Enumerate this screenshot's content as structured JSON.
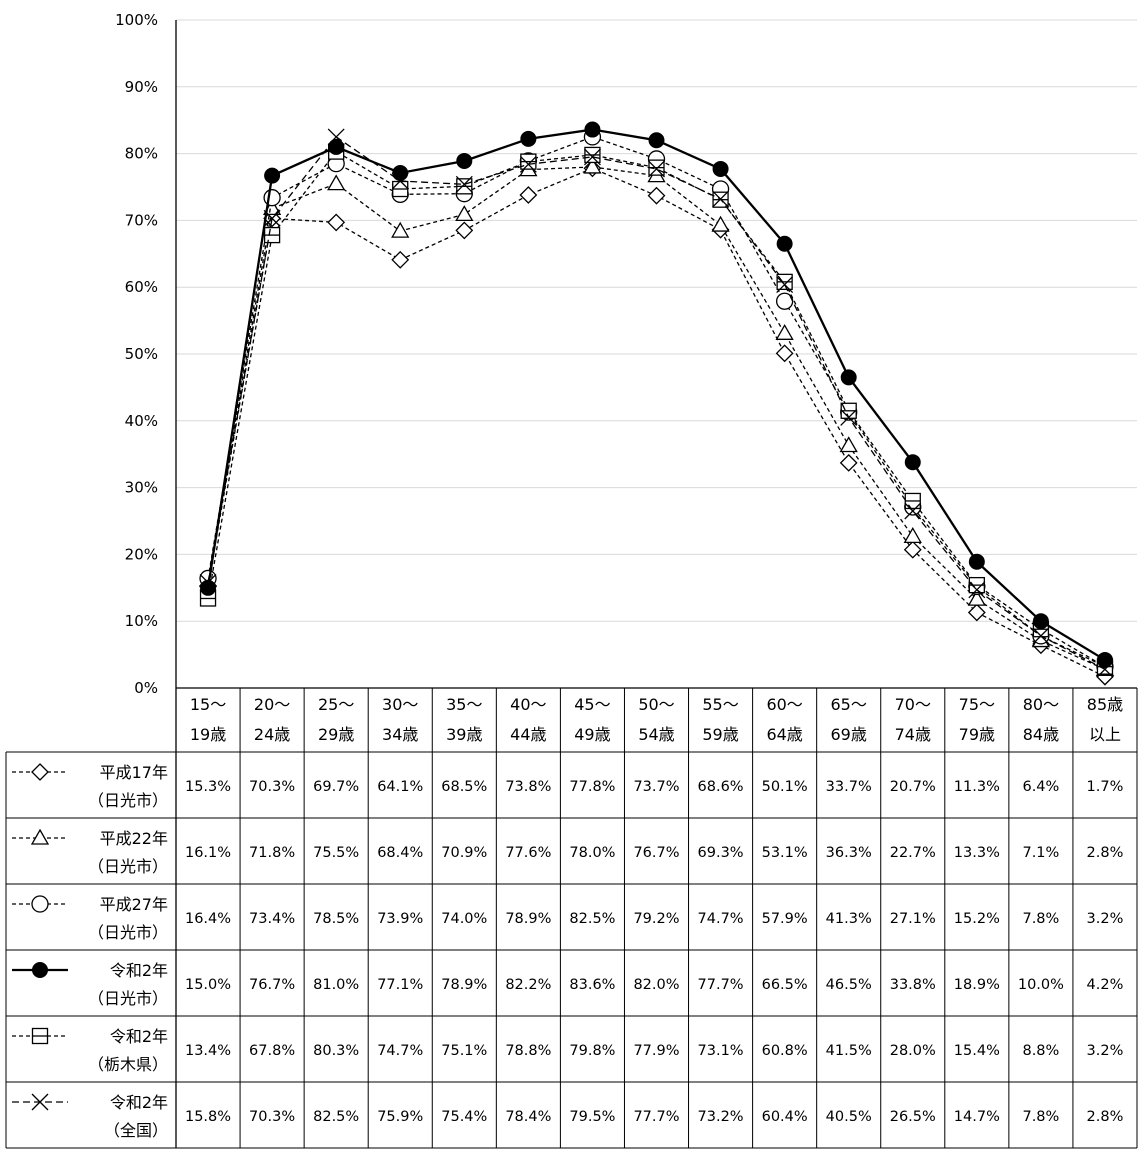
{
  "chart_data": {
    "type": "line",
    "categories": [
      [
        "15～",
        "19歳"
      ],
      [
        "20～",
        "24歳"
      ],
      [
        "25～",
        "29歳"
      ],
      [
        "30～",
        "34歳"
      ],
      [
        "35～",
        "39歳"
      ],
      [
        "40～",
        "44歳"
      ],
      [
        "45～",
        "49歳"
      ],
      [
        "50～",
        "54歳"
      ],
      [
        "55～",
        "59歳"
      ],
      [
        "60～",
        "64歳"
      ],
      [
        "65～",
        "69歳"
      ],
      [
        "70～",
        "74歳"
      ],
      [
        "75～",
        "79歳"
      ],
      [
        "80～",
        "84歳"
      ],
      [
        "85歳",
        "以上"
      ]
    ],
    "y_ticks": [
      "0%",
      "10%",
      "20%",
      "30%",
      "40%",
      "50%",
      "60%",
      "70%",
      "80%",
      "90%",
      "100%"
    ],
    "ylim": [
      0,
      100
    ],
    "grid": true,
    "legend_placement": "data-table-left",
    "series": [
      {
        "name": [
          "平成17年",
          "（日光市）"
        ],
        "marker": "diamond",
        "dashed": true,
        "values": [
          15.3,
          70.3,
          69.7,
          64.1,
          68.5,
          73.8,
          77.8,
          73.7,
          68.6,
          50.1,
          33.7,
          20.7,
          11.3,
          6.4,
          1.7
        ],
        "labels": [
          "15.3%",
          "70.3%",
          "69.7%",
          "64.1%",
          "68.5%",
          "73.8%",
          "77.8%",
          "73.7%",
          "68.6%",
          "50.1%",
          "33.7%",
          "20.7%",
          "11.3%",
          "6.4%",
          "1.7%"
        ]
      },
      {
        "name": [
          "平成22年",
          "（日光市）"
        ],
        "marker": "triangle",
        "dashed": true,
        "values": [
          16.1,
          71.8,
          75.5,
          68.4,
          70.9,
          77.6,
          78.0,
          76.7,
          69.3,
          53.1,
          36.3,
          22.7,
          13.3,
          7.1,
          2.8
        ],
        "labels": [
          "16.1%",
          "71.8%",
          "75.5%",
          "68.4%",
          "70.9%",
          "77.6%",
          "78.0%",
          "76.7%",
          "69.3%",
          "53.1%",
          "36.3%",
          "22.7%",
          "13.3%",
          "7.1%",
          "2.8%"
        ]
      },
      {
        "name": [
          "平成27年",
          "（日光市）"
        ],
        "marker": "circle-open",
        "dashed": true,
        "values": [
          16.4,
          73.4,
          78.5,
          73.9,
          74.0,
          78.9,
          82.5,
          79.2,
          74.7,
          57.9,
          41.3,
          27.1,
          15.2,
          7.8,
          3.2
        ],
        "labels": [
          "16.4%",
          "73.4%",
          "78.5%",
          "73.9%",
          "74.0%",
          "78.9%",
          "82.5%",
          "79.2%",
          "74.7%",
          "57.9%",
          "41.3%",
          "27.1%",
          "15.2%",
          "7.8%",
          "3.2%"
        ]
      },
      {
        "name": [
          "令和2年",
          "（日光市）"
        ],
        "marker": "circle-filled",
        "dashed": false,
        "values": [
          15.0,
          76.7,
          81.0,
          77.1,
          78.9,
          82.2,
          83.6,
          82.0,
          77.7,
          66.5,
          46.5,
          33.8,
          18.9,
          10.0,
          4.2
        ],
        "labels": [
          "15.0%",
          "76.7%",
          "81.0%",
          "77.1%",
          "78.9%",
          "82.2%",
          "83.6%",
          "82.0%",
          "77.7%",
          "66.5%",
          "46.5%",
          "33.8%",
          "18.9%",
          "10.0%",
          "4.2%"
        ]
      },
      {
        "name": [
          "令和2年",
          "（栃木県）"
        ],
        "marker": "square",
        "dashed": true,
        "values": [
          13.4,
          67.8,
          80.3,
          74.7,
          75.1,
          78.8,
          79.8,
          77.9,
          73.1,
          60.8,
          41.5,
          28.0,
          15.4,
          8.8,
          3.2
        ],
        "labels": [
          "13.4%",
          "67.8%",
          "80.3%",
          "74.7%",
          "75.1%",
          "78.8%",
          "79.8%",
          "77.9%",
          "73.1%",
          "60.8%",
          "41.5%",
          "28.0%",
          "15.4%",
          "8.8%",
          "3.2%"
        ]
      },
      {
        "name": [
          "令和2年",
          "（全国）"
        ],
        "marker": "x",
        "dashed": true,
        "values": [
          15.8,
          70.3,
          82.5,
          75.9,
          75.4,
          78.4,
          79.5,
          77.7,
          73.2,
          60.4,
          40.5,
          26.5,
          14.7,
          7.8,
          2.8
        ],
        "labels": [
          "15.8%",
          "70.3%",
          "82.5%",
          "75.9%",
          "75.4%",
          "78.4%",
          "79.5%",
          "77.7%",
          "73.2%",
          "60.4%",
          "40.5%",
          "26.5%",
          "14.7%",
          "7.8%",
          "2.8%"
        ]
      }
    ]
  }
}
